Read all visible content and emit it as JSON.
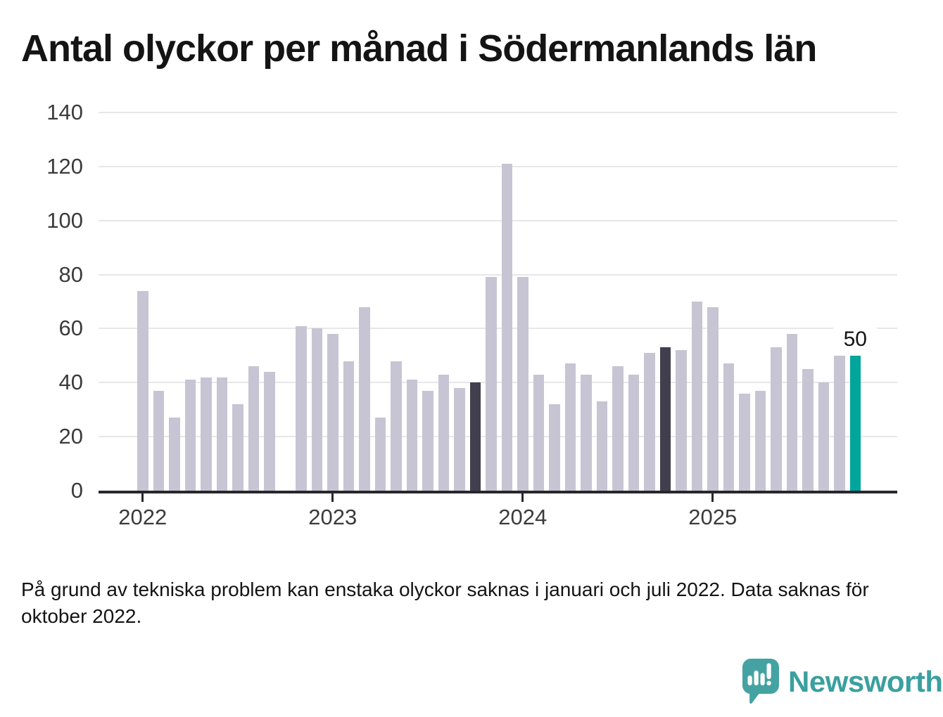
{
  "title": "Antal olyckor per månad i Södermanlands län",
  "footnote": "På grund av tekniska problem kan enstaka olyckor saknas i januari och juli 2022. Data saknas för oktober 2022.",
  "brand": {
    "name": "Newsworthy"
  },
  "colors": {
    "bar_default": "#c7c5d3",
    "bar_highlight_dark": "#413f4e",
    "bar_highlight_current": "#00a69b",
    "axis": "#28272e",
    "gridline": "#e7e7e9",
    "tick_label": "#3b3b3b",
    "title_text": "#141414",
    "brand_teal": "#44a3a2"
  },
  "chart_data": {
    "type": "bar",
    "title": "Antal olyckor per månad i Södermanlands län",
    "xlabel": "",
    "ylabel": "",
    "ylim": [
      0,
      140
    ],
    "yticks": [
      0,
      20,
      40,
      60,
      80,
      100,
      120,
      140
    ],
    "year_labels": [
      "2022",
      "2023",
      "2024",
      "2025"
    ],
    "grid": true,
    "legend_position": "none",
    "series": [
      {
        "month": "2022-01",
        "value": 74,
        "highlight": "none"
      },
      {
        "month": "2022-02",
        "value": 37,
        "highlight": "none"
      },
      {
        "month": "2022-03",
        "value": 27,
        "highlight": "none"
      },
      {
        "month": "2022-04",
        "value": 41,
        "highlight": "none"
      },
      {
        "month": "2022-05",
        "value": 42,
        "highlight": "none"
      },
      {
        "month": "2022-06",
        "value": 42,
        "highlight": "none"
      },
      {
        "month": "2022-07",
        "value": 32,
        "highlight": "none"
      },
      {
        "month": "2022-08",
        "value": 46,
        "highlight": "none"
      },
      {
        "month": "2022-09",
        "value": 44,
        "highlight": "none"
      },
      {
        "month": "2022-10",
        "value": null,
        "highlight": "none"
      },
      {
        "month": "2022-11",
        "value": 61,
        "highlight": "none"
      },
      {
        "month": "2022-12",
        "value": 60,
        "highlight": "none"
      },
      {
        "month": "2023-01",
        "value": 58,
        "highlight": "none"
      },
      {
        "month": "2023-02",
        "value": 48,
        "highlight": "none"
      },
      {
        "month": "2023-03",
        "value": 68,
        "highlight": "none"
      },
      {
        "month": "2023-04",
        "value": 27,
        "highlight": "none"
      },
      {
        "month": "2023-05",
        "value": 48,
        "highlight": "none"
      },
      {
        "month": "2023-06",
        "value": 41,
        "highlight": "none"
      },
      {
        "month": "2023-07",
        "value": 37,
        "highlight": "none"
      },
      {
        "month": "2023-08",
        "value": 43,
        "highlight": "none"
      },
      {
        "month": "2023-09",
        "value": 38,
        "highlight": "none"
      },
      {
        "month": "2023-10",
        "value": 40,
        "highlight": "dark"
      },
      {
        "month": "2023-11",
        "value": 79,
        "highlight": "none"
      },
      {
        "month": "2023-12",
        "value": 121,
        "highlight": "none"
      },
      {
        "month": "2024-01",
        "value": 79,
        "highlight": "none"
      },
      {
        "month": "2024-02",
        "value": 43,
        "highlight": "none"
      },
      {
        "month": "2024-03",
        "value": 32,
        "highlight": "none"
      },
      {
        "month": "2024-04",
        "value": 47,
        "highlight": "none"
      },
      {
        "month": "2024-05",
        "value": 43,
        "highlight": "none"
      },
      {
        "month": "2024-06",
        "value": 33,
        "highlight": "none"
      },
      {
        "month": "2024-07",
        "value": 46,
        "highlight": "none"
      },
      {
        "month": "2024-08",
        "value": 43,
        "highlight": "none"
      },
      {
        "month": "2024-09",
        "value": 51,
        "highlight": "none"
      },
      {
        "month": "2024-10",
        "value": 53,
        "highlight": "dark"
      },
      {
        "month": "2024-11",
        "value": 52,
        "highlight": "none"
      },
      {
        "month": "2024-12",
        "value": 70,
        "highlight": "none"
      },
      {
        "month": "2025-01",
        "value": 68,
        "highlight": "none"
      },
      {
        "month": "2025-02",
        "value": 47,
        "highlight": "none"
      },
      {
        "month": "2025-03",
        "value": 36,
        "highlight": "none"
      },
      {
        "month": "2025-04",
        "value": 37,
        "highlight": "none"
      },
      {
        "month": "2025-05",
        "value": 53,
        "highlight": "none"
      },
      {
        "month": "2025-06",
        "value": 58,
        "highlight": "none"
      },
      {
        "month": "2025-07",
        "value": 45,
        "highlight": "none"
      },
      {
        "month": "2025-08",
        "value": 40,
        "highlight": "none"
      },
      {
        "month": "2025-09",
        "value": 50,
        "highlight": "none"
      },
      {
        "month": "2025-10",
        "value": 50,
        "highlight": "current",
        "label": "50"
      }
    ]
  }
}
